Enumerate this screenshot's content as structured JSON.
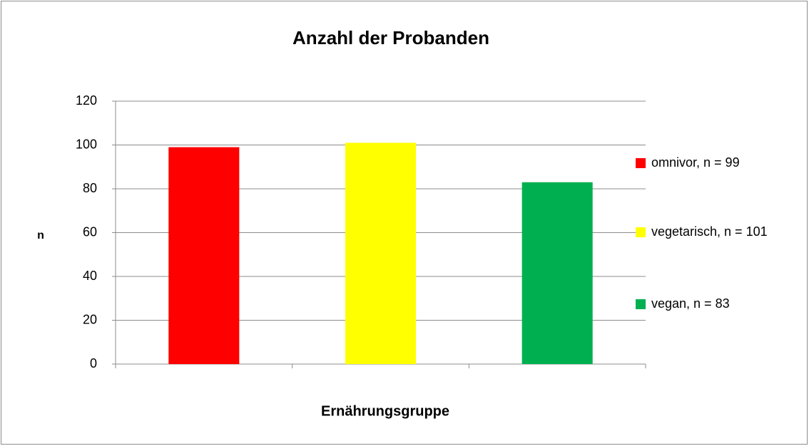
{
  "chart_data": {
    "type": "bar",
    "title": "Anzahl der Probanden",
    "x_label": "Ernährungsgruppe",
    "y_label": "n",
    "categories": [
      null,
      null,
      null
    ],
    "values": [
      99,
      101,
      83
    ],
    "colors": [
      "#ff0000",
      "#ffff00",
      "#00b050"
    ],
    "legend": [
      "omnivor, n = 99",
      "vegetarisch, n = 101",
      "vegan, n = 83"
    ],
    "ylim": [
      0,
      120
    ],
    "yticks": [
      0,
      20,
      40,
      60,
      80,
      100,
      120
    ],
    "grid": true,
    "legend_position": "right"
  }
}
